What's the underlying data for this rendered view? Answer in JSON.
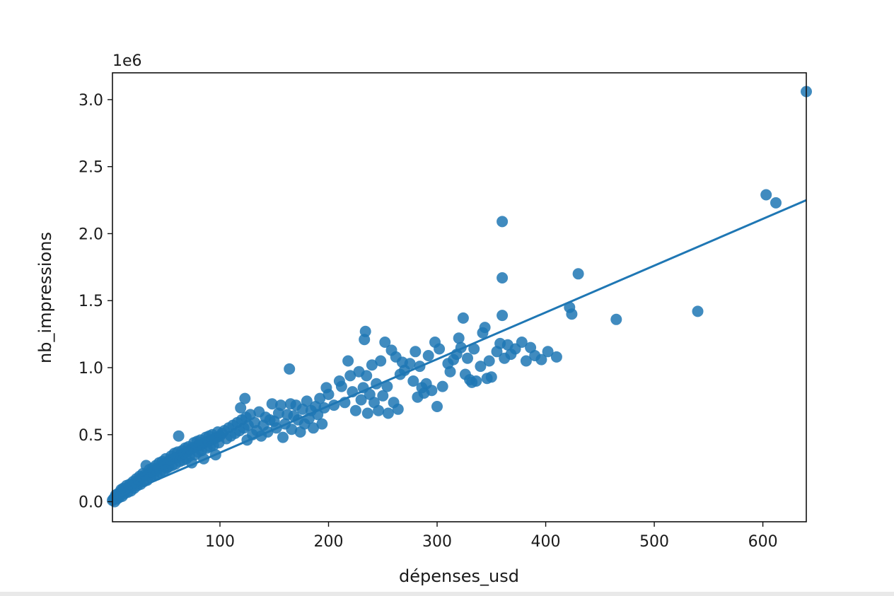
{
  "chart_data": {
    "type": "scatter",
    "title": "",
    "xlabel": "dépenses_usd",
    "ylabel": "nb_impressions",
    "offset_label": "1e6",
    "xlim": [
      1,
      640
    ],
    "ylim": [
      -0.15,
      3.2
    ],
    "x_ticks": [
      100,
      200,
      300,
      400,
      500,
      600
    ],
    "y_ticks": [
      0.0,
      0.5,
      1.0,
      1.5,
      2.0,
      2.5,
      3.0
    ],
    "x_tick_labels": [
      "100",
      "200",
      "300",
      "400",
      "500",
      "600"
    ],
    "y_tick_labels": [
      "0.0",
      "0.5",
      "1.0",
      "1.5",
      "2.0",
      "2.5",
      "3.0"
    ],
    "grid": false,
    "color": "#1f77b4",
    "regression_line": {
      "x": [
        1,
        640
      ],
      "y": [
        0.02,
        2.25
      ]
    },
    "series": [
      {
        "points": [
          [
            1,
            0.01
          ],
          [
            2,
            0.02
          ],
          [
            3,
            0.03
          ],
          [
            3,
            0.0
          ],
          [
            4,
            0.05
          ],
          [
            5,
            0.02
          ],
          [
            5,
            0.04
          ],
          [
            6,
            0.06
          ],
          [
            7,
            0.03
          ],
          [
            8,
            0.07
          ],
          [
            8,
            0.05
          ],
          [
            9,
            0.09
          ],
          [
            10,
            0.04
          ],
          [
            10,
            0.08
          ],
          [
            11,
            0.1
          ],
          [
            12,
            0.06
          ],
          [
            13,
            0.09
          ],
          [
            14,
            0.12
          ],
          [
            15,
            0.07
          ],
          [
            16,
            0.11
          ],
          [
            17,
            0.13
          ],
          [
            18,
            0.08
          ],
          [
            19,
            0.12
          ],
          [
            20,
            0.15
          ],
          [
            21,
            0.1
          ],
          [
            22,
            0.14
          ],
          [
            23,
            0.17
          ],
          [
            24,
            0.12
          ],
          [
            25,
            0.16
          ],
          [
            26,
            0.19
          ],
          [
            27,
            0.13
          ],
          [
            28,
            0.18
          ],
          [
            29,
            0.21
          ],
          [
            30,
            0.15
          ],
          [
            31,
            0.2
          ],
          [
            32,
            0.27
          ],
          [
            33,
            0.16
          ],
          [
            34,
            0.21
          ],
          [
            35,
            0.24
          ],
          [
            36,
            0.18
          ],
          [
            37,
            0.22
          ],
          [
            38,
            0.25
          ],
          [
            39,
            0.19
          ],
          [
            40,
            0.24
          ],
          [
            41,
            0.27
          ],
          [
            42,
            0.2
          ],
          [
            43,
            0.25
          ],
          [
            44,
            0.29
          ],
          [
            45,
            0.22
          ],
          [
            46,
            0.27
          ],
          [
            47,
            0.3
          ],
          [
            48,
            0.23
          ],
          [
            49,
            0.28
          ],
          [
            50,
            0.32
          ],
          [
            51,
            0.25
          ],
          [
            52,
            0.3
          ],
          [
            53,
            0.26
          ],
          [
            54,
            0.31
          ],
          [
            55,
            0.34
          ],
          [
            56,
            0.27
          ],
          [
            57,
            0.32
          ],
          [
            58,
            0.36
          ],
          [
            59,
            0.28
          ],
          [
            60,
            0.33
          ],
          [
            61,
            0.37
          ],
          [
            62,
            0.49
          ],
          [
            63,
            0.3
          ],
          [
            64,
            0.35
          ],
          [
            65,
            0.38
          ],
          [
            66,
            0.31
          ],
          [
            67,
            0.36
          ],
          [
            68,
            0.4
          ],
          [
            69,
            0.32
          ],
          [
            70,
            0.37
          ],
          [
            71,
            0.41
          ],
          [
            72,
            0.34
          ],
          [
            73,
            0.39
          ],
          [
            74,
            0.29
          ],
          [
            75,
            0.4
          ],
          [
            76,
            0.44
          ],
          [
            77,
            0.35
          ],
          [
            78,
            0.41
          ],
          [
            79,
            0.45
          ],
          [
            80,
            0.37
          ],
          [
            81,
            0.42
          ],
          [
            82,
            0.46
          ],
          [
            83,
            0.38
          ],
          [
            84,
            0.43
          ],
          [
            85,
            0.32
          ],
          [
            86,
            0.44
          ],
          [
            87,
            0.48
          ],
          [
            88,
            0.4
          ],
          [
            89,
            0.45
          ],
          [
            90,
            0.49
          ],
          [
            91,
            0.41
          ],
          [
            92,
            0.46
          ],
          [
            93,
            0.5
          ],
          [
            94,
            0.42
          ],
          [
            95,
            0.47
          ],
          [
            96,
            0.35
          ],
          [
            97,
            0.48
          ],
          [
            98,
            0.52
          ],
          [
            99,
            0.44
          ],
          [
            100,
            0.49
          ],
          [
            102,
            0.51
          ],
          [
            104,
            0.53
          ],
          [
            106,
            0.47
          ],
          [
            108,
            0.55
          ],
          [
            110,
            0.49
          ],
          [
            112,
            0.57
          ],
          [
            114,
            0.51
          ],
          [
            116,
            0.59
          ],
          [
            118,
            0.53
          ],
          [
            119,
            0.7
          ],
          [
            120,
            0.61
          ],
          [
            122,
            0.55
          ],
          [
            123,
            0.77
          ],
          [
            124,
            0.63
          ],
          [
            125,
            0.46
          ],
          [
            126,
            0.57
          ],
          [
            128,
            0.65
          ],
          [
            130,
            0.5
          ],
          [
            132,
            0.59
          ],
          [
            134,
            0.53
          ],
          [
            136,
            0.67
          ],
          [
            138,
            0.49
          ],
          [
            140,
            0.57
          ],
          [
            142,
            0.63
          ],
          [
            144,
            0.52
          ],
          [
            146,
            0.61
          ],
          [
            148,
            0.73
          ],
          [
            150,
            0.6
          ],
          [
            152,
            0.55
          ],
          [
            154,
            0.66
          ],
          [
            156,
            0.72
          ],
          [
            158,
            0.48
          ],
          [
            160,
            0.58
          ],
          [
            162,
            0.65
          ],
          [
            164,
            0.99
          ],
          [
            165,
            0.73
          ],
          [
            166,
            0.54
          ],
          [
            168,
            0.64
          ],
          [
            170,
            0.72
          ],
          [
            172,
            0.61
          ],
          [
            174,
            0.52
          ],
          [
            176,
            0.69
          ],
          [
            178,
            0.58
          ],
          [
            180,
            0.75
          ],
          [
            182,
            0.62
          ],
          [
            184,
            0.68
          ],
          [
            186,
            0.55
          ],
          [
            188,
            0.71
          ],
          [
            190,
            0.65
          ],
          [
            192,
            0.77
          ],
          [
            194,
            0.58
          ],
          [
            196,
            0.7
          ],
          [
            198,
            0.85
          ],
          [
            200,
            0.8
          ],
          [
            205,
            0.72
          ],
          [
            210,
            0.9
          ],
          [
            212,
            0.86
          ],
          [
            215,
            0.74
          ],
          [
            218,
            1.05
          ],
          [
            220,
            0.94
          ],
          [
            222,
            0.82
          ],
          [
            225,
            0.68
          ],
          [
            228,
            0.97
          ],
          [
            230,
            0.76
          ],
          [
            232,
            0.85
          ],
          [
            233,
            1.21
          ],
          [
            234,
            1.27
          ],
          [
            235,
            0.94
          ],
          [
            236,
            0.66
          ],
          [
            238,
            0.8
          ],
          [
            240,
            1.02
          ],
          [
            242,
            0.74
          ],
          [
            244,
            0.88
          ],
          [
            246,
            0.68
          ],
          [
            248,
            1.05
          ],
          [
            250,
            0.79
          ],
          [
            252,
            1.19
          ],
          [
            254,
            0.86
          ],
          [
            255,
            0.66
          ],
          [
            258,
            1.13
          ],
          [
            260,
            0.74
          ],
          [
            262,
            1.08
          ],
          [
            264,
            0.69
          ],
          [
            266,
            0.95
          ],
          [
            268,
            1.04
          ],
          [
            270,
            0.98
          ],
          [
            275,
            1.03
          ],
          [
            278,
            0.9
          ],
          [
            280,
            1.12
          ],
          [
            282,
            0.78
          ],
          [
            284,
            1.01
          ],
          [
            286,
            0.85
          ],
          [
            288,
            0.81
          ],
          [
            290,
            0.88
          ],
          [
            292,
            1.09
          ],
          [
            295,
            0.83
          ],
          [
            298,
            1.19
          ],
          [
            300,
            0.71
          ],
          [
            302,
            1.14
          ],
          [
            305,
            0.86
          ],
          [
            310,
            1.03
          ],
          [
            312,
            0.97
          ],
          [
            315,
            1.06
          ],
          [
            318,
            1.1
          ],
          [
            320,
            1.22
          ],
          [
            322,
            1.15
          ],
          [
            324,
            1.37
          ],
          [
            326,
            0.95
          ],
          [
            328,
            1.07
          ],
          [
            330,
            0.91
          ],
          [
            332,
            0.89
          ],
          [
            334,
            1.14
          ],
          [
            336,
            0.9
          ],
          [
            340,
            1.01
          ],
          [
            342,
            1.26
          ],
          [
            344,
            1.3
          ],
          [
            346,
            0.92
          ],
          [
            348,
            1.05
          ],
          [
            350,
            0.93
          ],
          [
            355,
            1.12
          ],
          [
            358,
            1.18
          ],
          [
            360,
            2.09
          ],
          [
            360,
            1.67
          ],
          [
            360,
            1.39
          ],
          [
            362,
            1.07
          ],
          [
            365,
            1.17
          ],
          [
            368,
            1.1
          ],
          [
            372,
            1.14
          ],
          [
            378,
            1.19
          ],
          [
            382,
            1.05
          ],
          [
            386,
            1.15
          ],
          [
            390,
            1.09
          ],
          [
            396,
            1.06
          ],
          [
            402,
            1.12
          ],
          [
            410,
            1.08
          ],
          [
            422,
            1.45
          ],
          [
            424,
            1.4
          ],
          [
            430,
            1.7
          ],
          [
            465,
            1.36
          ],
          [
            540,
            1.42
          ],
          [
            603,
            2.29
          ],
          [
            612,
            2.23
          ],
          [
            640,
            3.06
          ]
        ]
      }
    ]
  }
}
